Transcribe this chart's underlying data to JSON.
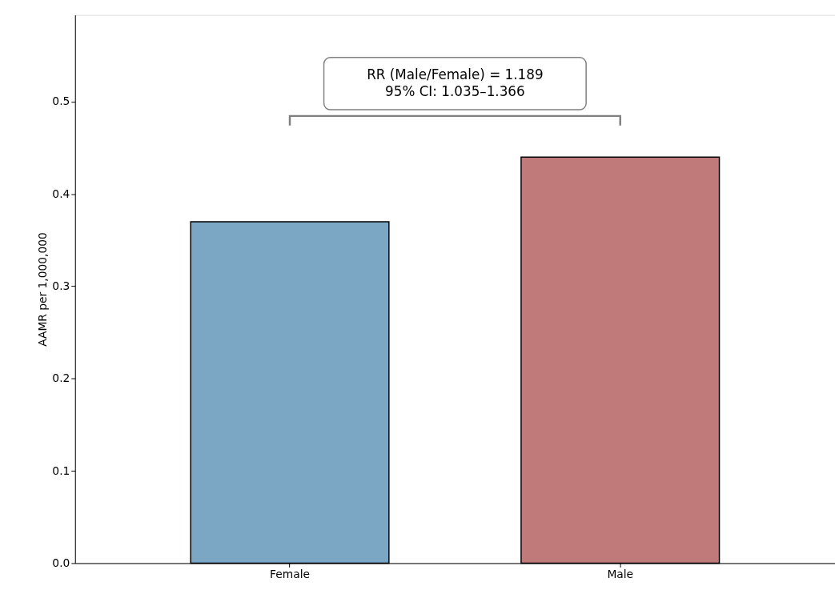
{
  "chart_data": {
    "type": "bar",
    "ylabel": "AAMR per 1,000,000",
    "categories": [
      "Female",
      "Male"
    ],
    "values": [
      0.37,
      0.44
    ],
    "colors": [
      "#7ba6c4",
      "#c07a7a"
    ],
    "ylim": [
      0,
      0.594
    ],
    "yticks": [
      {
        "value": 0,
        "label": "0.0"
      },
      0.1,
      0.2,
      0.3,
      0.4,
      0.5
    ],
    "grid": false,
    "annotations": [
      "RR (Male/Female) = 1.189\n95% CI: 1.035–1.366"
    ]
  }
}
